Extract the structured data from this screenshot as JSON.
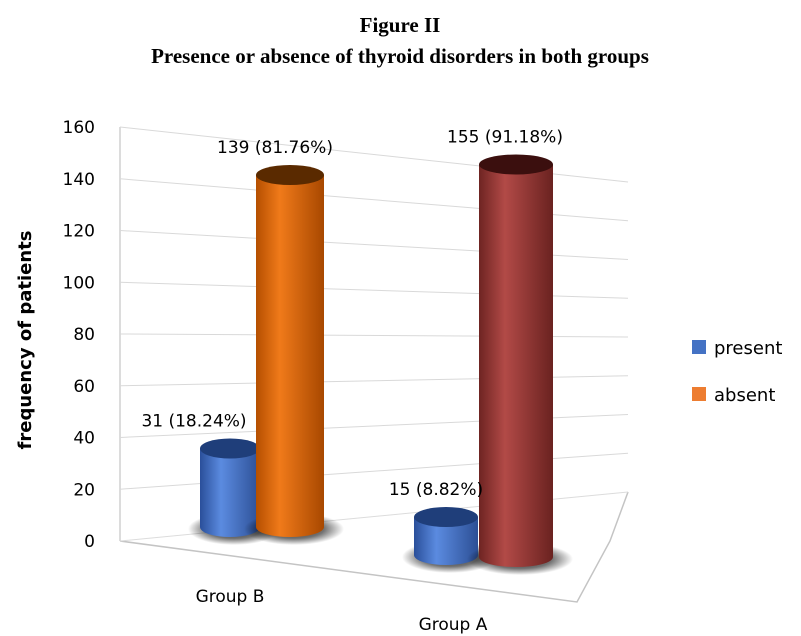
{
  "chart_data": {
    "type": "bar",
    "title": "Figure II",
    "subtitle": "Presence or absence of thyroid disorders in both groups",
    "ylabel": "frequency of patients",
    "xlabel": "",
    "ylim": [
      0,
      160
    ],
    "yticks": [
      "0",
      "20",
      "40",
      "60",
      "80",
      "100",
      "120",
      "140",
      "160"
    ],
    "categories": [
      "Group B",
      "Group A"
    ],
    "series": [
      {
        "name": "present",
        "color": "#4472c4",
        "values": [
          31,
          15
        ],
        "labels": [
          "31 (18.24%)",
          "15 (8.82%)"
        ]
      },
      {
        "name": "absent",
        "colors": [
          "#e46c0a",
          "#953735"
        ],
        "values": [
          139,
          155
        ],
        "labels": [
          "139 (81.76%)",
          "155 (91.18%)"
        ]
      }
    ],
    "legend": {
      "position": "right",
      "items": [
        {
          "label": "present",
          "color": "#4472c4"
        },
        {
          "label": "absent",
          "color": "#ed7d31"
        }
      ]
    },
    "grid": true,
    "style": "3d-cylinder"
  }
}
